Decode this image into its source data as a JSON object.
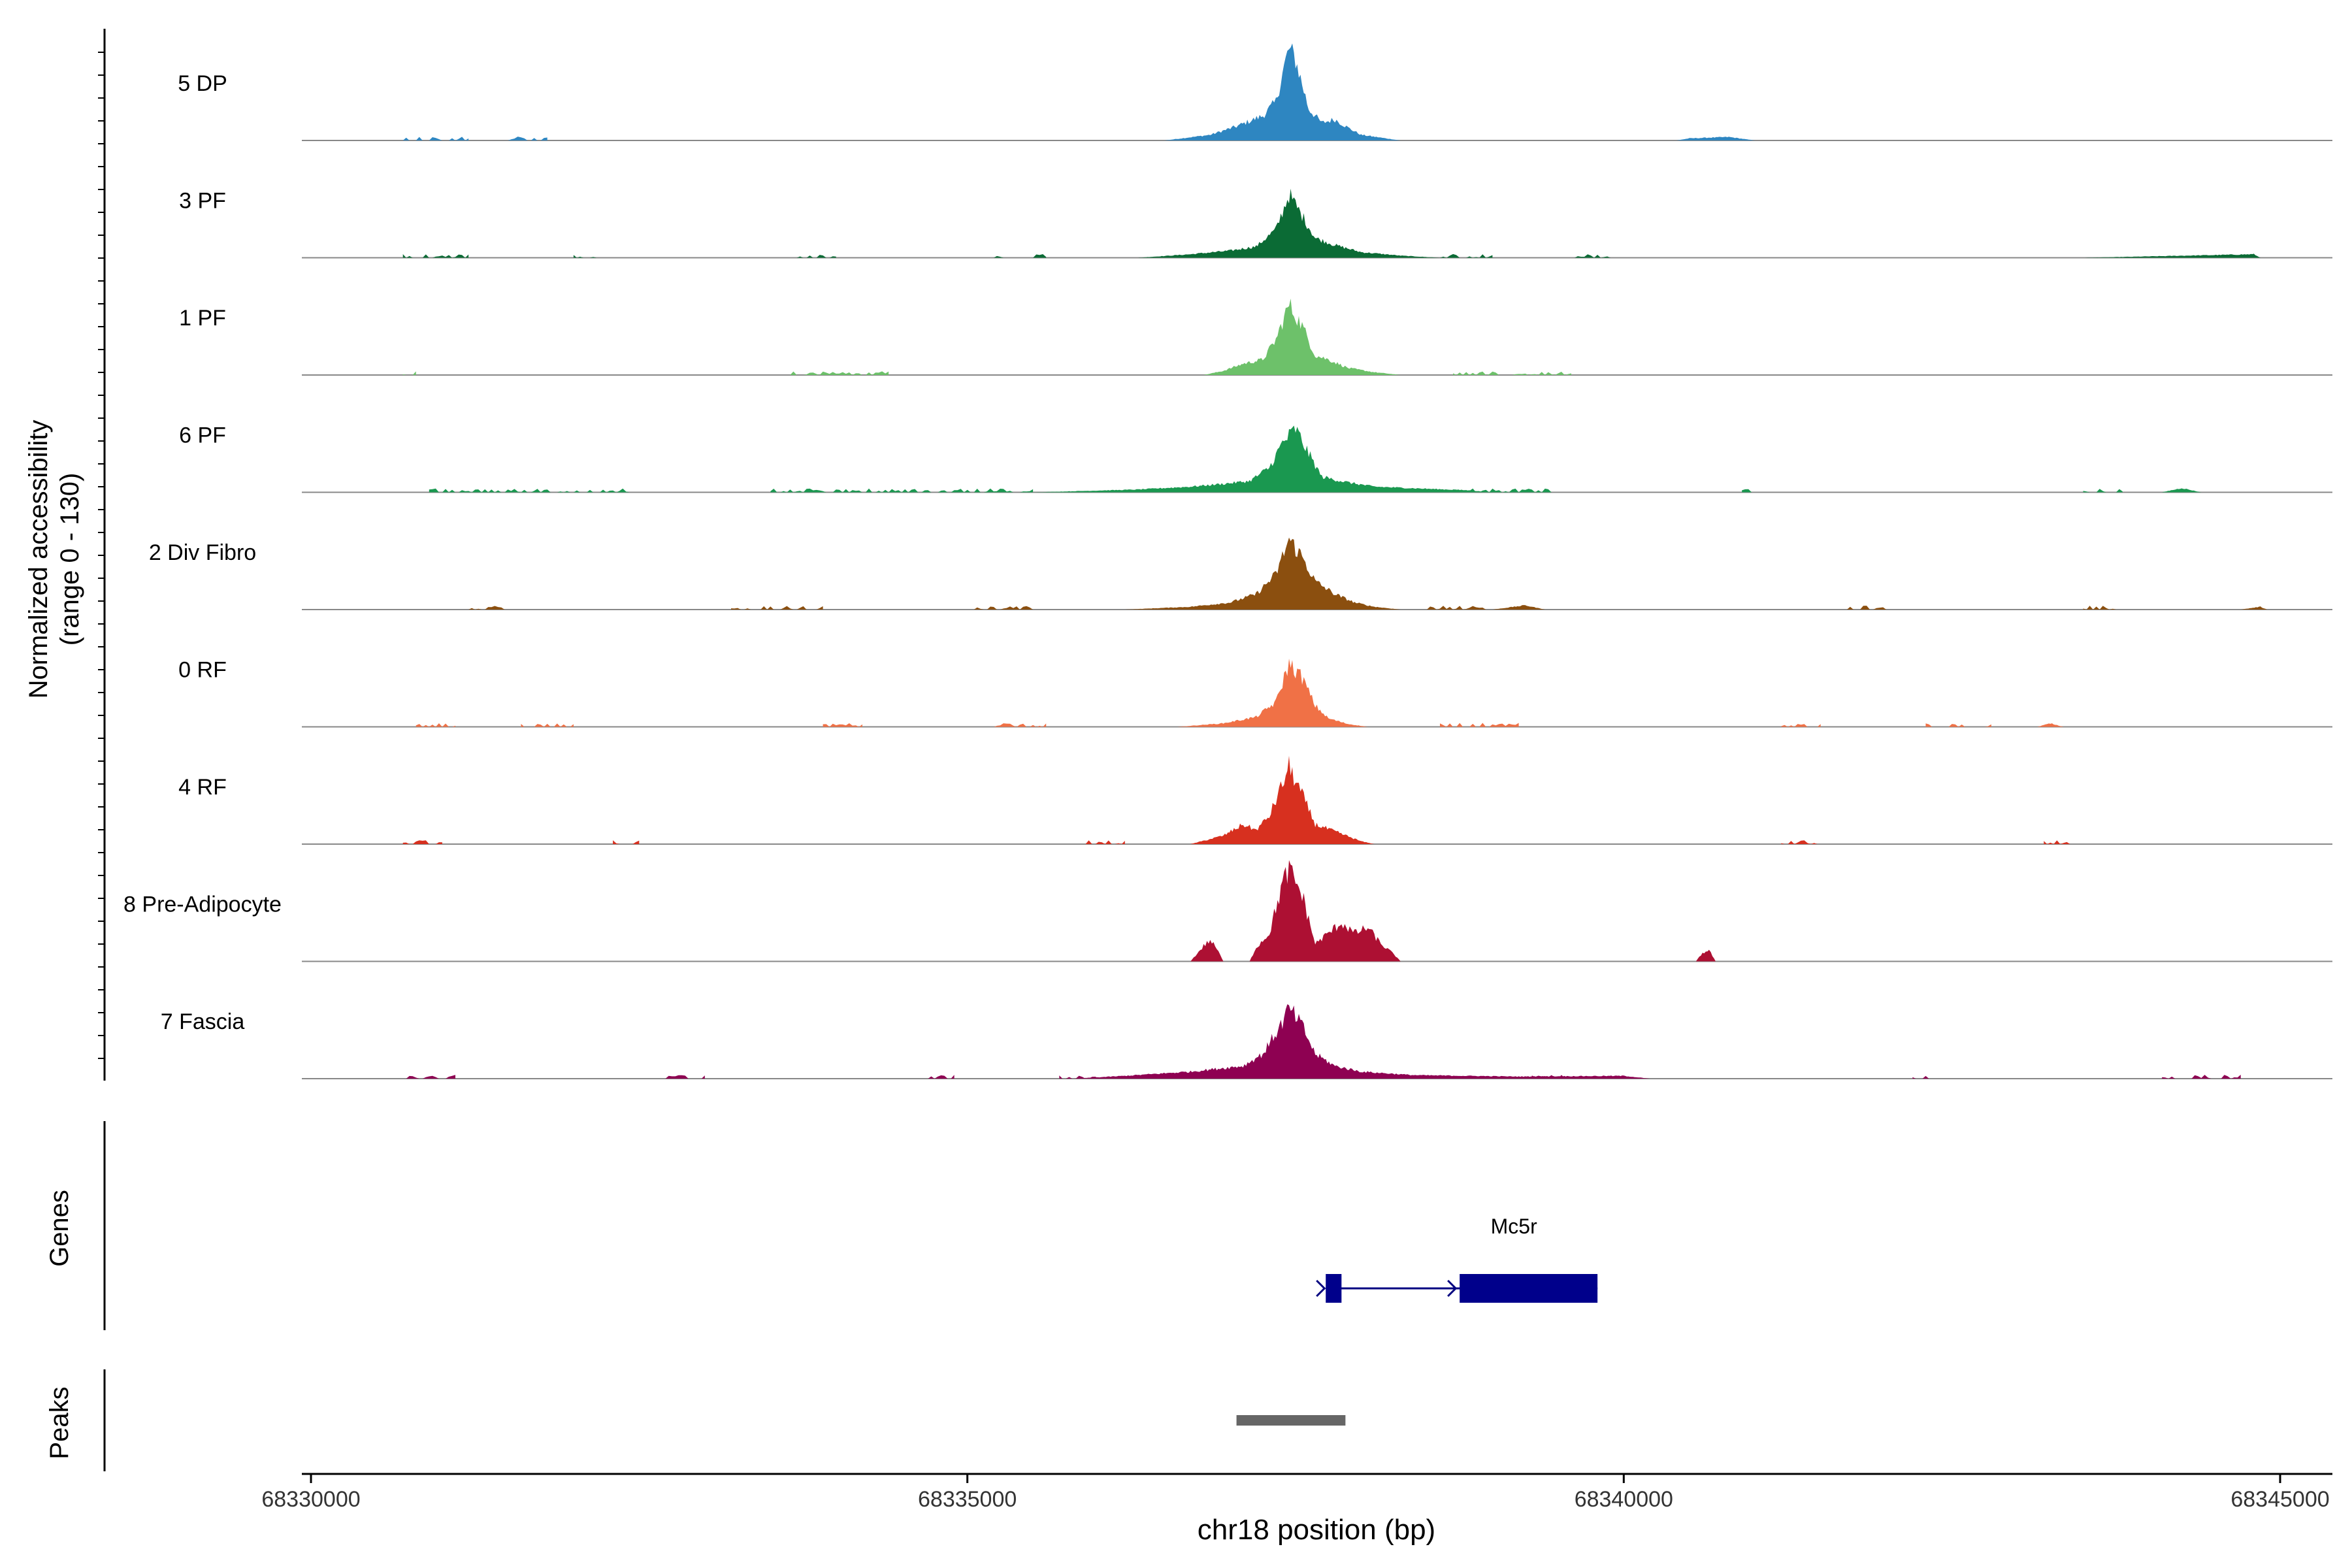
{
  "chart_data": {
    "type": "area",
    "chromosome": "chr18",
    "xlabel": "chr18 position (bp)",
    "ylabel_line1": "Normalized accessibility",
    "ylabel_line2": "(range 0 - 130)",
    "y_range": [
      0,
      130
    ],
    "xlim": [
      68329900,
      68345400
    ],
    "x_ticks": [
      68330000,
      68335000,
      68340000,
      68345000
    ],
    "x_tick_labels": [
      "68330000",
      "68335000",
      "68340000",
      "68345000"
    ],
    "genes_label": "Genes",
    "peaks_label": "Peaks",
    "series": [
      {
        "name": "5 DP",
        "color": "#2E86C1",
        "peak_value": 130,
        "profile": [
          [
            68336500,
            0
          ],
          [
            68336850,
            8
          ],
          [
            68337050,
            20
          ],
          [
            68337250,
            35
          ],
          [
            68337350,
            55
          ],
          [
            68337400,
            95
          ],
          [
            68337450,
            130
          ],
          [
            68337500,
            115
          ],
          [
            68337550,
            80
          ],
          [
            68337600,
            45
          ],
          [
            68337700,
            25
          ],
          [
            68337800,
            30
          ],
          [
            68337900,
            18
          ],
          [
            68338000,
            8
          ],
          [
            68338150,
            4
          ],
          [
            68338300,
            0
          ],
          [
            68340400,
            0
          ],
          [
            68340500,
            3
          ],
          [
            68340800,
            5
          ],
          [
            68341000,
            0
          ]
        ]
      },
      {
        "name": "3 PF",
        "color": "#0B6B35",
        "peak_value": 90,
        "profile": [
          [
            68336300,
            0
          ],
          [
            68336700,
            5
          ],
          [
            68337000,
            10
          ],
          [
            68337200,
            16
          ],
          [
            68337350,
            40
          ],
          [
            68337450,
            90
          ],
          [
            68337550,
            60
          ],
          [
            68337650,
            28
          ],
          [
            68337800,
            18
          ],
          [
            68338000,
            8
          ],
          [
            68338300,
            3
          ],
          [
            68338600,
            0
          ],
          [
            68343500,
            0
          ],
          [
            68344800,
            5
          ],
          [
            68344850,
            0
          ]
        ]
      },
      {
        "name": "1 PF",
        "color": "#6DC16A",
        "peak_value": 100,
        "profile": [
          [
            68336800,
            0
          ],
          [
            68336950,
            6
          ],
          [
            68337100,
            16
          ],
          [
            68337250,
            22
          ],
          [
            68337350,
            50
          ],
          [
            68337450,
            100
          ],
          [
            68337550,
            70
          ],
          [
            68337650,
            28
          ],
          [
            68337750,
            22
          ],
          [
            68337900,
            10
          ],
          [
            68338100,
            4
          ],
          [
            68338300,
            0
          ]
        ]
      },
      {
        "name": "6 PF",
        "color": "#1A9850",
        "peak_value": 90,
        "profile": [
          [
            68335500,
            0
          ],
          [
            68336300,
            4
          ],
          [
            68336700,
            8
          ],
          [
            68336950,
            12
          ],
          [
            68337150,
            16
          ],
          [
            68337300,
            35
          ],
          [
            68337400,
            70
          ],
          [
            68337500,
            90
          ],
          [
            68337600,
            55
          ],
          [
            68337700,
            22
          ],
          [
            68337900,
            14
          ],
          [
            68338100,
            8
          ],
          [
            68338500,
            5
          ],
          [
            68338800,
            3
          ],
          [
            68339000,
            0
          ],
          [
            68344100,
            0
          ],
          [
            68344250,
            6
          ],
          [
            68344400,
            0
          ]
        ]
      },
      {
        "name": "2 Div Fibro",
        "color": "#8B4F0F",
        "peak_value": 100,
        "profile": [
          [
            68336200,
            0
          ],
          [
            68336700,
            4
          ],
          [
            68337000,
            10
          ],
          [
            68337200,
            22
          ],
          [
            68337350,
            50
          ],
          [
            68337450,
            100
          ],
          [
            68337550,
            75
          ],
          [
            68337650,
            40
          ],
          [
            68337800,
            22
          ],
          [
            68337950,
            10
          ],
          [
            68338100,
            4
          ],
          [
            68338300,
            0
          ],
          [
            68339000,
            0
          ],
          [
            68339250,
            6
          ],
          [
            68339400,
            0
          ],
          [
            68344700,
            0
          ],
          [
            68344850,
            4
          ],
          [
            68344900,
            0
          ]
        ]
      },
      {
        "name": "0 RF",
        "color": "#F07146",
        "peak_value": 90,
        "profile": [
          [
            68336600,
            0
          ],
          [
            68336950,
            5
          ],
          [
            68337200,
            14
          ],
          [
            68337350,
            35
          ],
          [
            68337450,
            90
          ],
          [
            68337550,
            70
          ],
          [
            68337650,
            30
          ],
          [
            68337750,
            12
          ],
          [
            68337900,
            4
          ],
          [
            68338050,
            0
          ],
          [
            68343150,
            0
          ],
          [
            68343250,
            5
          ],
          [
            68343350,
            0
          ]
        ]
      },
      {
        "name": "4 RF",
        "color": "#D7301F",
        "peak_value": 110,
        "profile": [
          [
            68336700,
            0
          ],
          [
            68336950,
            12
          ],
          [
            68337100,
            28
          ],
          [
            68337200,
            20
          ],
          [
            68337300,
            40
          ],
          [
            68337400,
            85
          ],
          [
            68337450,
            110
          ],
          [
            68337550,
            70
          ],
          [
            68337650,
            28
          ],
          [
            68337800,
            18
          ],
          [
            68338000,
            4
          ],
          [
            68338100,
            0
          ]
        ]
      },
      {
        "name": "8 Pre-Adipocyte",
        "color": "#AD1033",
        "peak_value": 130,
        "profile": [
          [
            68336700,
            0
          ],
          [
            68336800,
            22
          ],
          [
            68336850,
            30
          ],
          [
            68336900,
            18
          ],
          [
            68336950,
            0
          ],
          [
            68337150,
            0
          ],
          [
            68337200,
            20
          ],
          [
            68337300,
            40
          ],
          [
            68337400,
            110
          ],
          [
            68337450,
            130
          ],
          [
            68337550,
            95
          ],
          [
            68337600,
            60
          ],
          [
            68337650,
            25
          ],
          [
            68337750,
            40
          ],
          [
            68337850,
            55
          ],
          [
            68337950,
            40
          ],
          [
            68338050,
            48
          ],
          [
            68338150,
            25
          ],
          [
            68338250,
            10
          ],
          [
            68338300,
            0
          ],
          [
            68340550,
            0
          ],
          [
            68340600,
            12
          ],
          [
            68340650,
            16
          ],
          [
            68340700,
            0
          ]
        ]
      },
      {
        "name": "7 Fascia",
        "color": "#8E0152",
        "peak_value": 100,
        "profile": [
          [
            68335800,
            0
          ],
          [
            68336200,
            4
          ],
          [
            68336700,
            10
          ],
          [
            68336900,
            14
          ],
          [
            68337100,
            18
          ],
          [
            68337250,
            35
          ],
          [
            68337400,
            80
          ],
          [
            68337450,
            100
          ],
          [
            68337550,
            75
          ],
          [
            68337650,
            35
          ],
          [
            68337800,
            18
          ],
          [
            68338000,
            10
          ],
          [
            68338400,
            5
          ],
          [
            68338800,
            4
          ],
          [
            68339200,
            3
          ],
          [
            68340000,
            4
          ],
          [
            68340200,
            0
          ]
        ]
      }
    ],
    "noise_regions": [
      [
        [
          68330700,
          68331200
        ],
        [
          68331500,
          68331800
        ]
      ],
      [
        [
          68330700,
          68331200
        ],
        [
          68332000,
          68332200
        ],
        [
          68333700,
          68334000
        ],
        [
          68335200,
          68335600
        ],
        [
          68338600,
          68339000
        ],
        [
          68339600,
          68339900
        ]
      ],
      [
        [
          68330700,
          68330800
        ],
        [
          68333600,
          68334400
        ],
        [
          68338700,
          68339600
        ]
      ],
      [
        [
          68330900,
          68332500
        ],
        [
          68333500,
          68335500
        ],
        [
          68338700,
          68339500
        ],
        [
          68340900,
          68341000
        ],
        [
          68343500,
          68343800
        ]
      ],
      [
        [
          68331200,
          68331500
        ],
        [
          68333200,
          68333900
        ],
        [
          68335000,
          68335500
        ],
        [
          68338500,
          68339000
        ],
        [
          68341700,
          68342000
        ],
        [
          68343500,
          68343800
        ]
      ],
      [
        [
          68330800,
          68331100
        ],
        [
          68331600,
          68332000
        ],
        [
          68333900,
          68334200
        ],
        [
          68335200,
          68335600
        ],
        [
          68338600,
          68339200
        ],
        [
          68341200,
          68341500
        ],
        [
          68342300,
          68342800
        ]
      ],
      [
        [
          68330700,
          68331000
        ],
        [
          68332300,
          68332500
        ],
        [
          68335800,
          68336200
        ],
        [
          68341200,
          68341500
        ],
        [
          68343200,
          68343400
        ]
      ],
      [],
      [
        [
          68330700,
          68331100
        ],
        [
          68332700,
          68333000
        ],
        [
          68334700,
          68334900
        ],
        [
          68335700,
          68336000
        ],
        [
          68339300,
          68339800
        ],
        [
          68342200,
          68342400
        ],
        [
          68344100,
          68344700
        ]
      ]
    ],
    "genes": [
      {
        "name": "Mc5r",
        "strand": "+",
        "exons": [
          [
            68337730,
            68337850
          ],
          [
            68338750,
            68339800
          ]
        ],
        "thick_exons": [
          [
            68338750,
            68339800
          ]
        ],
        "span": [
          68337730,
          68339800
        ]
      }
    ],
    "peaks": [
      [
        68337050,
        68337880
      ]
    ]
  }
}
